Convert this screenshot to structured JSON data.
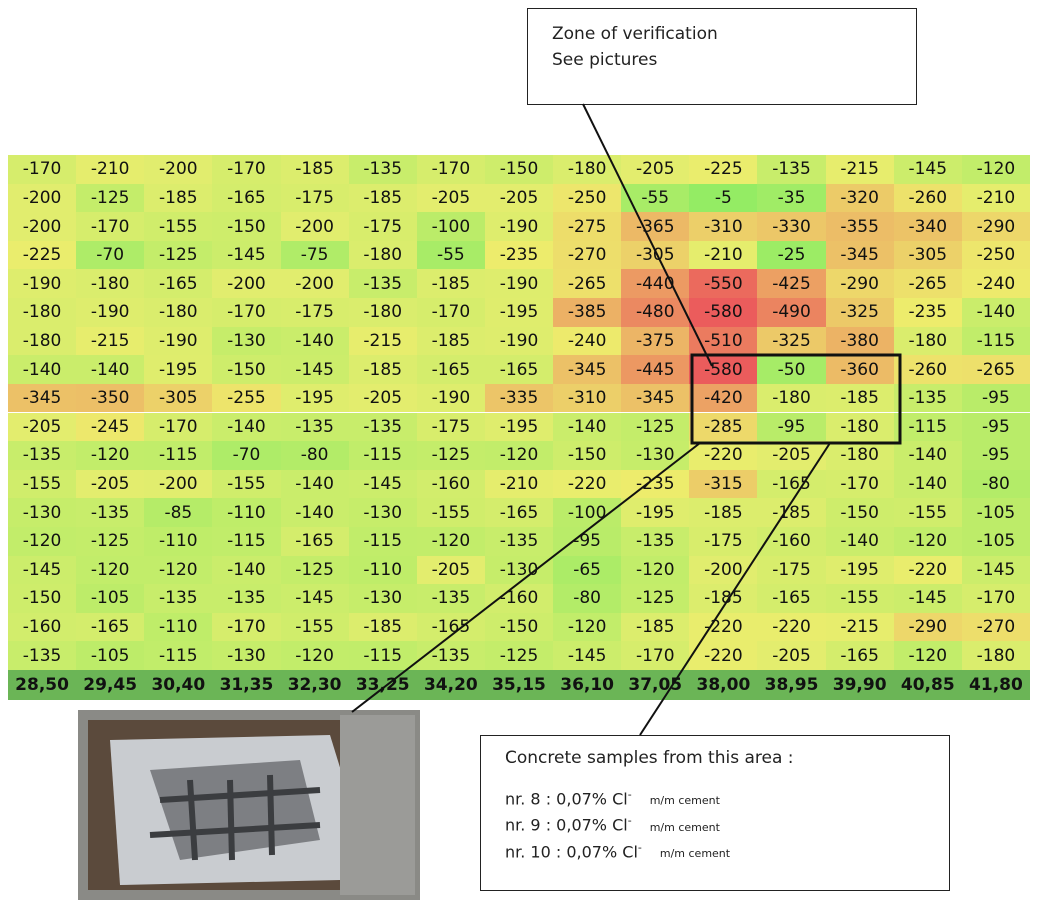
{
  "zone_box": {
    "lines": [
      "Zone of verification",
      "See pictures"
    ]
  },
  "table": {
    "rows": [
      [
        -170,
        -210,
        -200,
        -170,
        -185,
        -135,
        -170,
        -150,
        -180,
        -205,
        -225,
        -135,
        -215,
        -145,
        -120
      ],
      [
        -200,
        -125,
        -185,
        -165,
        -175,
        -185,
        -205,
        -205,
        -250,
        -55,
        -5,
        -35,
        -320,
        -260,
        -210
      ],
      [
        -200,
        -170,
        -155,
        -150,
        -200,
        -175,
        -100,
        -190,
        -275,
        -365,
        -310,
        -330,
        -355,
        -340,
        -290
      ],
      [
        -225,
        -70,
        -125,
        -145,
        -75,
        -180,
        -55,
        -235,
        -270,
        -305,
        -210,
        -25,
        -345,
        -305,
        -250
      ],
      [
        -190,
        -180,
        -165,
        -200,
        -200,
        -135,
        -185,
        -190,
        -265,
        -440,
        -550,
        -425,
        -290,
        -265,
        -240
      ],
      [
        -180,
        -190,
        -180,
        -170,
        -175,
        -180,
        -170,
        -195,
        -385,
        -480,
        -580,
        -490,
        -325,
        -235,
        -140
      ],
      [
        -180,
        -215,
        -190,
        -130,
        -140,
        -215,
        -185,
        -190,
        -240,
        -375,
        -510,
        -325,
        -380,
        -180,
        -115
      ],
      [
        -140,
        -140,
        -195,
        -150,
        -145,
        -185,
        -165,
        -165,
        -345,
        -445,
        -580,
        -50,
        -360,
        -260,
        -265
      ],
      [
        -345,
        -350,
        -305,
        -255,
        -195,
        -205,
        -190,
        -335,
        -310,
        -345,
        -420,
        -180,
        -185,
        -135,
        -95
      ],
      [
        -205,
        -245,
        -170,
        -140,
        -135,
        -135,
        -175,
        -195,
        -140,
        -125,
        -285,
        -95,
        -180,
        -115,
        -95
      ],
      [
        -135,
        -120,
        -115,
        -70,
        -80,
        -115,
        -125,
        -120,
        -150,
        -130,
        -220,
        -205,
        -180,
        -140,
        -95
      ],
      [
        -155,
        -205,
        -200,
        -155,
        -140,
        -145,
        -160,
        -210,
        -220,
        -235,
        -315,
        -165,
        -170,
        -140,
        -80
      ],
      [
        -130,
        -135,
        -85,
        -110,
        -140,
        -130,
        -155,
        -165,
        -100,
        -195,
        -185,
        -185,
        -150,
        -155,
        -105
      ],
      [
        -120,
        -125,
        -110,
        -115,
        -165,
        -115,
        -120,
        -135,
        -95,
        -135,
        -175,
        -160,
        -140,
        -120,
        -105
      ],
      [
        -145,
        -120,
        -120,
        -140,
        -125,
        -110,
        -205,
        -130,
        -65,
        -120,
        -200,
        -175,
        -195,
        -220,
        -145
      ],
      [
        -150,
        -105,
        -135,
        -135,
        -145,
        -130,
        -135,
        -160,
        -80,
        -125,
        -185,
        -165,
        -155,
        -145,
        -170
      ],
      [
        -160,
        -165,
        -110,
        -170,
        -155,
        -185,
        -165,
        -150,
        -120,
        -185,
        -220,
        -220,
        -215,
        -290,
        -270
      ],
      [
        -135,
        -105,
        -115,
        -130,
        -120,
        -115,
        -135,
        -125,
        -145,
        -170,
        -220,
        -205,
        -165,
        -120,
        -180
      ]
    ],
    "footer": [
      "28,50",
      "29,45",
      "30,40",
      "31,35",
      "32,30",
      "33,25",
      "34,20",
      "35,15",
      "36,10",
      "37,05",
      "38,00",
      "38,95",
      "39,90",
      "40,85",
      "41,80"
    ]
  },
  "samples_box": {
    "title": "Concrete samples from this area :",
    "samples": [
      {
        "label": "nr. 8 :",
        "value": "0,07% Cl",
        "sup": "-",
        "unit": "m/m cement"
      },
      {
        "label": "nr. 9 :",
        "value": "0,07% Cl",
        "sup": "-",
        "unit": "m/m cement"
      },
      {
        "label": "nr. 10 :",
        "value": "0,07% Cl",
        "sup": "-",
        "unit": "m/m cement"
      }
    ]
  }
}
